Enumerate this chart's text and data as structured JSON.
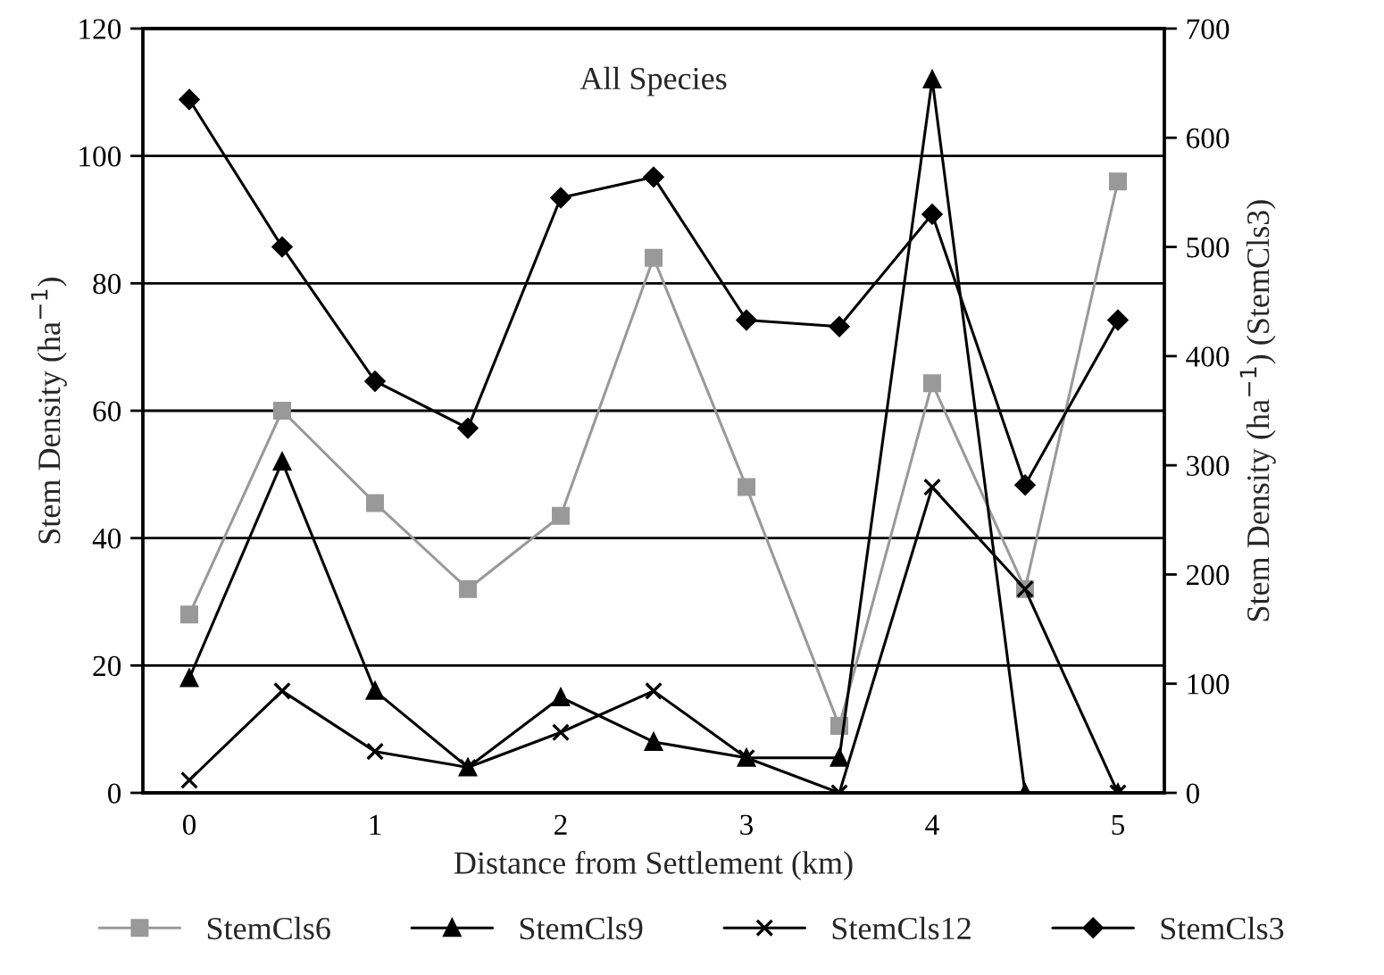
{
  "chart_data": {
    "type": "line",
    "xlabel": "Distance from Settlement (km)",
    "ylabel": "Stem Density (ha$^{−1}$)",
    "y2label": "Stem Density (ha$^{−1}$) (StemCls3)",
    "annotations": [
      "All Species"
    ],
    "x": [
      0,
      0.5,
      1,
      1.5,
      2,
      2.5,
      3,
      3.5,
      4,
      4.5,
      5
    ],
    "xlim": [
      -0.25,
      5.25
    ],
    "xticks": [
      0,
      1,
      2,
      3,
      4,
      5
    ],
    "ylim": [
      0,
      120
    ],
    "yticks": [
      0,
      20,
      40,
      60,
      80,
      100,
      120
    ],
    "y2lim": [
      0,
      700
    ],
    "y2ticks": [
      0,
      100,
      200,
      300,
      400,
      500,
      600,
      700
    ],
    "grid": "y",
    "legend": "bottom",
    "series": [
      {
        "name": "StemCls6",
        "color": "#999999",
        "marker": "square",
        "values": [
          28,
          60,
          45.5,
          32,
          43.5,
          84,
          48,
          10.5,
          64.3,
          32,
          96
        ]
      },
      {
        "name": "StemCls9",
        "color": "#000000",
        "marker": "triangle",
        "values": [
          18,
          52,
          16,
          4,
          15,
          8,
          5.5,
          5.5,
          112,
          0,
          0
        ]
      },
      {
        "name": "StemCls12",
        "color": "#000000",
        "marker": "cross",
        "values": [
          2,
          16,
          6.5,
          4,
          9.5,
          16,
          5.5,
          0,
          48,
          32,
          0
        ]
      },
      {
        "name": "StemCls3",
        "color": "#000000",
        "marker": "diamond",
        "axis": "y2",
        "values": [
          635,
          500,
          377,
          334,
          545,
          564,
          433,
          427,
          530,
          282,
          433
        ]
      }
    ]
  }
}
